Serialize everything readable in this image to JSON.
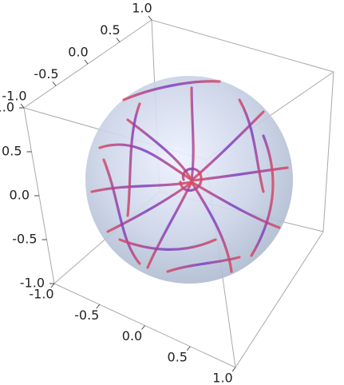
{
  "chart_data": {
    "type": "stream3d",
    "xlim": [
      -1,
      1
    ],
    "ylim": [
      -1,
      1
    ],
    "zlim": [
      -1,
      1
    ],
    "xticks": [
      {
        "value": -1,
        "label": "-1.0"
      },
      {
        "value": -0.5,
        "label": "-0.5"
      },
      {
        "value": 0,
        "label": "0.0"
      },
      {
        "value": 0.5,
        "label": "0.5"
      },
      {
        "value": 1,
        "label": "1.0"
      }
    ],
    "yticks": [
      {
        "value": -1,
        "label": "-1.0"
      },
      {
        "value": -0.5,
        "label": "-0.5"
      },
      {
        "value": 0,
        "label": "0.0"
      },
      {
        "value": 0.5,
        "label": "0.5"
      },
      {
        "value": 1,
        "label": "1.0"
      }
    ],
    "zticks": [
      {
        "value": -1,
        "label": "-1.0"
      },
      {
        "value": -0.5,
        "label": "-0.5"
      },
      {
        "value": 0,
        "label": "0.0"
      },
      {
        "value": 0.5,
        "label": "0.5"
      },
      {
        "value": 1,
        "label": "1.0"
      }
    ]
  }
}
